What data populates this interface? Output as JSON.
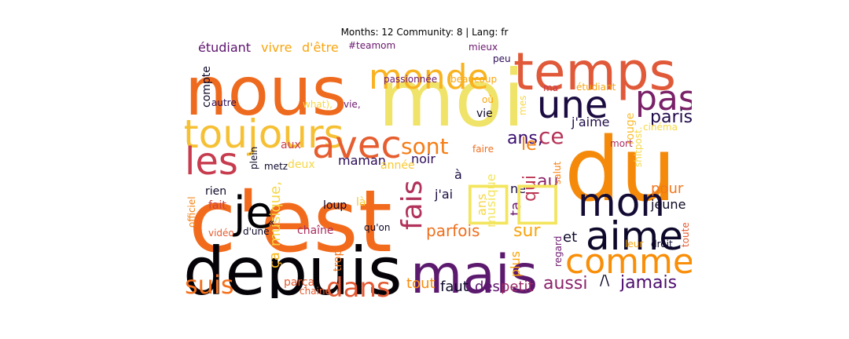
{
  "chart_data": {
    "type": "wordcloud",
    "title": "Months: 12 Community: 8 | Lang: fr",
    "colormap": "inferno",
    "words": [
      {
        "text": "moi",
        "color": "#f0e36a"
      },
      {
        "text": "c'est",
        "color": "#f26b1d"
      },
      {
        "text": "nous",
        "color": "#ee6a1e"
      },
      {
        "text": "temps",
        "color": "#e05a3a"
      },
      {
        "text": "du",
        "color": "#f58a0a"
      },
      {
        "text": "depuis",
        "color": "#050308"
      },
      {
        "text": "mais",
        "color": "#5c1a6e"
      },
      {
        "text": "monde",
        "color": "#f9b321"
      },
      {
        "text": "toujours",
        "color": "#f6c035"
      },
      {
        "text": "une",
        "color": "#1b0c41"
      },
      {
        "text": "pas",
        "color": "#7a2168"
      },
      {
        "text": "les",
        "color": "#c73c4e"
      },
      {
        "text": "avec",
        "color": "#e65d2f"
      },
      {
        "text": "mon",
        "color": "#140b34"
      },
      {
        "text": "aime",
        "color": "#0d0829"
      },
      {
        "text": "comme",
        "color": "#f98e09"
      },
      {
        "text": "je",
        "color": "#000004"
      },
      {
        "text": "fais",
        "color": "#b1325a"
      },
      {
        "text": "sont",
        "color": "#f57d15"
      },
      {
        "text": "dans",
        "color": "#e35933"
      },
      {
        "text": "suis",
        "color": "#f5701c"
      },
      {
        "text": "ce",
        "color": "#b63458"
      },
      {
        "text": "paris",
        "color": "#210c4a"
      },
      {
        "text": "ans,",
        "color": "#3b0f70"
      },
      {
        "text": "le",
        "color": "#f68212"
      },
      {
        "text": "au",
        "color": "#8b2267"
      },
      {
        "text": "qui",
        "color": "#bc3754"
      },
      {
        "text": "sur",
        "color": "#f8a50f"
      },
      {
        "text": "parfois",
        "color": "#ef6e1c"
      },
      {
        "text": "aussi",
        "color": "#8a226a"
      },
      {
        "text": "jamais",
        "color": "#4d0d6e"
      },
      {
        "text": "tout",
        "color": "#f98c0a"
      },
      {
        "text": "faut",
        "color": "#0d0829"
      },
      {
        "text": "des",
        "color": "#5c126e"
      },
      {
        "text": "petit",
        "color": "#9b2964"
      },
      {
        "text": "pour",
        "color": "#f3761b"
      },
      {
        "text": "jeune",
        "color": "#0b0724"
      },
      {
        "text": "j'aime",
        "color": "#1f0c48"
      },
      {
        "text": "ça",
        "color": "#fbb61a"
      },
      {
        "text": "musique,",
        "color": "#f6d746"
      },
      {
        "text": "musique",
        "color": "#f3e55d"
      },
      {
        "text": "ans",
        "color": "#f6d746"
      },
      {
        "text": "ta",
        "color": "#6d186e"
      },
      {
        "text": "ne",
        "color": "#1a0b40"
      },
      {
        "text": "j'ai",
        "color": "#1a0b40"
      },
      {
        "text": "à",
        "color": "#1a0b40"
      },
      {
        "text": "noir",
        "color": "#2d0b59"
      },
      {
        "text": "maman",
        "color": "#2a0b54"
      },
      {
        "text": "année",
        "color": "#f8c932"
      },
      {
        "text": "aux",
        "color": "#c93e4c"
      },
      {
        "text": "deux",
        "color": "#f6d746"
      },
      {
        "text": "rien",
        "color": "#0d0829"
      },
      {
        "text": "fait",
        "color": "#cf4446"
      },
      {
        "text": "loup",
        "color": "#0d0829"
      },
      {
        "text": "là",
        "color": "#f8c932"
      },
      {
        "text": "chaîne",
        "color": "#a82e5f"
      },
      {
        "text": "qu'on",
        "color": "#0d0829"
      },
      {
        "text": "trop",
        "color": "#f3761b"
      },
      {
        "text": "parça",
        "color": "#e55c30"
      },
      {
        "text": "chaine",
        "color": "#e55c30"
      },
      {
        "text": "«",
        "color": "#0d0829"
      },
      {
        "text": "d'une",
        "color": "#0d0829"
      },
      {
        "text": "vidéo",
        "color": "#e55c30"
      },
      {
        "text": "officiel",
        "color": "#f68212"
      },
      {
        "text": "plein",
        "color": "#0d0829"
      },
      {
        "text": "metz",
        "color": "#0d0829"
      },
      {
        "text": "et",
        "color": "#0d0829"
      },
      {
        "text": "/\\",
        "color": "#0d0829"
      },
      {
        "text": "plus",
        "color": "#fca50a"
      },
      {
        "text": "regard",
        "color": "#6a176e"
      },
      {
        "text": "leur",
        "color": "#f8a50f"
      },
      {
        "text": "droit",
        "color": "#0d0829"
      },
      {
        "text": "toute",
        "color": "#e55c30"
      },
      {
        "text": "shitpost.",
        "color": "#f6d746"
      },
      {
        "text": "rouge",
        "color": "#fcbb2c"
      },
      {
        "text": "mort",
        "color": "#a82e5f"
      },
      {
        "text": "salut",
        "color": "#f68212"
      },
      {
        "text": "cinéma",
        "color": "#f6d746"
      },
      {
        "text": "faire",
        "color": "#ef6e1c"
      },
      {
        "text": "mes",
        "color": "#f6d746"
      },
      {
        "text": "vie",
        "color": "#0d0829"
      },
      {
        "text": "où",
        "color": "#fca50a"
      },
      {
        "text": "ma",
        "color": "#c93e4c"
      },
      {
        "text": "étudiant",
        "color": "#f8a50f"
      },
      {
        "text": "beaucoup",
        "color": "#f8a50f"
      },
      {
        "text": "passionnée",
        "color": "#6a176e"
      },
      {
        "text": "peu",
        "color": "#2a0b54"
      },
      {
        "text": "mieux",
        "color": "#6a176e"
      },
      {
        "text": "#teamom",
        "color": "#6a176e"
      },
      {
        "text": "vivre",
        "color": "#f8a50f"
      },
      {
        "text": "d'être",
        "color": "#f8a50f"
      },
      {
        "text": "étudiant",
        "color": "#5c126e"
      },
      {
        "text": "compte",
        "color": "#0d0829"
      },
      {
        "text": "autre",
        "color": "#2a0b54"
      },
      {
        "text": "what),",
        "color": "#f6d746"
      },
      {
        "text": "vie,",
        "color": "#6a176e"
      },
      {
        "text": "□□",
        "color": "#f3e55d"
      }
    ]
  }
}
